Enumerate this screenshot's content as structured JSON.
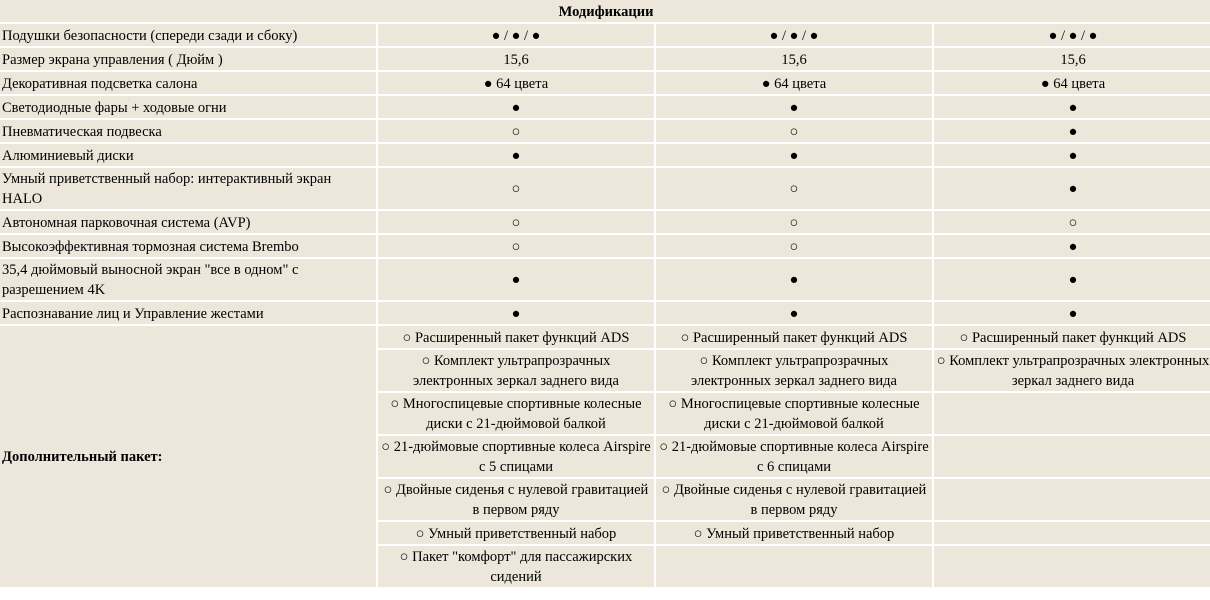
{
  "title": "Модификации",
  "features": [
    {
      "name": "Подушки безопасности (спереди сзади и сбоку)",
      "values": [
        "● / ● / ●",
        "● / ● / ●",
        "● / ● / ●"
      ]
    },
    {
      "name": "Размер экрана управления ( Дюйм )",
      "values": [
        "15,6",
        "15,6",
        "15,6"
      ]
    },
    {
      "name": "Декоративная подсветка салона",
      "values": [
        "● 64 цвета",
        "● 64 цвета",
        "● 64 цвета"
      ]
    },
    {
      "name": "Светодиодные фары + ходовые огни",
      "values": [
        "●",
        "●",
        "●"
      ]
    },
    {
      "name": "Пневматическая подвеска",
      "values": [
        "○",
        "○",
        "●"
      ]
    },
    {
      "name": "Алюминиевый диски",
      "values": [
        "●",
        "●",
        "●"
      ]
    },
    {
      "name": "Умный приветственный набор: интерактивный экран HALO",
      "values": [
        "○",
        "○",
        "●"
      ]
    },
    {
      "name": "Автономная парковочная система (AVP)",
      "values": [
        "○",
        "○",
        "○"
      ]
    },
    {
      "name": "Высокоэффективная тормозная система Brembo",
      "values": [
        "○",
        "○",
        "●"
      ]
    },
    {
      "name": "35,4 дюймовый выносной экран \"все в одном\" с разрешением 4K",
      "values": [
        "●",
        "●",
        "●"
      ]
    },
    {
      "name": "Распознавание лиц и Управление жестами",
      "values": [
        "●",
        "●",
        "●"
      ]
    }
  ],
  "package": {
    "label": "Дополнительный пакет:",
    "rows": [
      [
        "○ Расширенный пакет функций ADS",
        "○ Расширенный пакет функций ADS",
        "○ Расширенный пакет функций ADS"
      ],
      [
        "○ Комплект ультрапрозрачных электронных зеркал заднего вида",
        "○ Комплект ультрапрозрачных электронных зеркал заднего вида",
        "○ Комплект ультрапрозрачных электронных зеркал заднего вида"
      ],
      [
        "○ Многоспицевые спортивные колесные диски с 21-дюймовой балкой",
        "○ Многоспицевые спортивные колесные диски с 21-дюймовой балкой",
        ""
      ],
      [
        "○ 21-дюймовые спортивные колеса Airspire с 5 спицами",
        "○ 21-дюймовые спортивные колеса Airspire с 6 спицами",
        ""
      ],
      [
        "○ Двойные сиденья с нулевой гравитацией в первом ряду",
        "○ Двойные сиденья с нулевой гравитацией в первом ряду",
        ""
      ],
      [
        "○ Умный приветственный набор",
        "○ Умный приветственный набор",
        ""
      ],
      [
        "○ Пакет \"комфорт\" для пассажирских сидений",
        "",
        ""
      ]
    ]
  }
}
